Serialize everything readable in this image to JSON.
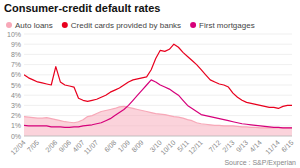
{
  "chart_data": {
    "type": "line",
    "title": "Consumer-credit default rates",
    "annotations": [
      "Source : S&P/Experian"
    ],
    "categories": [
      "12/04",
      null,
      null,
      "7/05",
      null,
      null,
      null,
      "2/06",
      null,
      null,
      "9/06",
      null,
      null,
      "4/07",
      null,
      null,
      "11/07",
      null,
      null,
      null,
      "6/08",
      null,
      null,
      "1/09",
      null,
      null,
      "8/09",
      null,
      null,
      null,
      "3/10",
      null,
      null,
      "10/10",
      null,
      null,
      "5/11",
      null,
      null,
      "12/11",
      null,
      null,
      null,
      "7/12",
      null,
      null,
      "2/13",
      null,
      null,
      "9/13",
      null,
      null,
      "4/14",
      null,
      null,
      null,
      "11/14",
      null,
      null,
      "6/15"
    ],
    "series": [
      {
        "name": "Auto loans",
        "color": "#f7a8b8",
        "type": "area",
        "values": [
          1.9,
          1.85,
          1.8,
          1.75,
          1.75,
          1.8,
          1.7,
          1.6,
          1.5,
          1.4,
          1.35,
          1.3,
          1.4,
          1.6,
          1.9,
          2.0,
          2.2,
          2.4,
          2.5,
          2.6,
          2.7,
          2.85,
          2.9,
          2.8,
          2.7,
          2.6,
          2.5,
          2.4,
          2.3,
          2.2,
          2.15,
          2.1,
          2.0,
          1.9,
          1.85,
          1.75,
          1.6,
          1.5,
          1.3,
          1.2,
          1.15,
          1.1,
          1.05,
          1.05,
          1.0,
          1.0,
          1.0,
          0.95,
          0.9,
          0.9,
          0.85,
          0.85,
          0.8,
          0.8,
          0.8,
          0.8,
          0.8,
          0.8,
          0.8,
          0.8
        ]
      },
      {
        "name": "Credit cards provided by banks",
        "color": "#e8001e",
        "type": "line",
        "values": [
          6.0,
          5.7,
          5.5,
          5.3,
          5.2,
          5.1,
          5.0,
          6.8,
          5.3,
          5.0,
          4.9,
          4.8,
          3.7,
          3.5,
          3.4,
          3.5,
          3.6,
          3.8,
          4.0,
          4.3,
          4.5,
          4.7,
          5.0,
          5.3,
          5.5,
          5.6,
          5.7,
          5.8,
          6.5,
          7.6,
          8.4,
          8.3,
          8.5,
          9.0,
          8.7,
          8.2,
          7.8,
          7.4,
          7.0,
          6.5,
          6.0,
          5.5,
          5.3,
          5.1,
          5.0,
          4.8,
          4.2,
          3.8,
          3.5,
          3.3,
          3.2,
          3.1,
          3.0,
          2.9,
          2.8,
          2.8,
          2.7,
          2.9,
          3.0,
          3.0
        ]
      },
      {
        "name": "First mortgages",
        "color": "#d6007a",
        "type": "line",
        "values": [
          1.05,
          1.0,
          1.0,
          1.0,
          1.0,
          1.0,
          0.9,
          0.9,
          0.9,
          0.85,
          0.85,
          0.9,
          0.9,
          1.0,
          1.05,
          1.1,
          1.2,
          1.3,
          1.5,
          1.7,
          2.0,
          2.3,
          2.6,
          3.0,
          3.5,
          4.0,
          4.5,
          5.0,
          5.5,
          5.3,
          5.0,
          4.8,
          4.6,
          4.3,
          4.0,
          3.5,
          3.0,
          2.7,
          2.4,
          2.1,
          2.0,
          1.9,
          1.8,
          1.7,
          1.6,
          1.5,
          1.4,
          1.3,
          1.2,
          1.15,
          1.1,
          1.05,
          1.0,
          0.95,
          0.9,
          0.85,
          0.85,
          0.8,
          0.8,
          0.8
        ]
      }
    ],
    "ylim": [
      0,
      10
    ],
    "yticks": [
      {
        "value": 0,
        "label": "0%"
      },
      {
        "value": 1,
        "label": "1%"
      },
      {
        "value": 2,
        "label": "2%"
      },
      {
        "value": 3,
        "label": "3%"
      },
      {
        "value": 4,
        "label": "4%"
      },
      {
        "value": 5,
        "label": "5%"
      },
      {
        "value": 6,
        "label": "6%"
      },
      {
        "value": 7,
        "label": "7%"
      },
      {
        "value": 8,
        "label": "8%"
      },
      {
        "value": 9,
        "label": "9%"
      },
      {
        "value": 10,
        "label": "10%"
      }
    ],
    "grid": true,
    "legend": "top"
  }
}
